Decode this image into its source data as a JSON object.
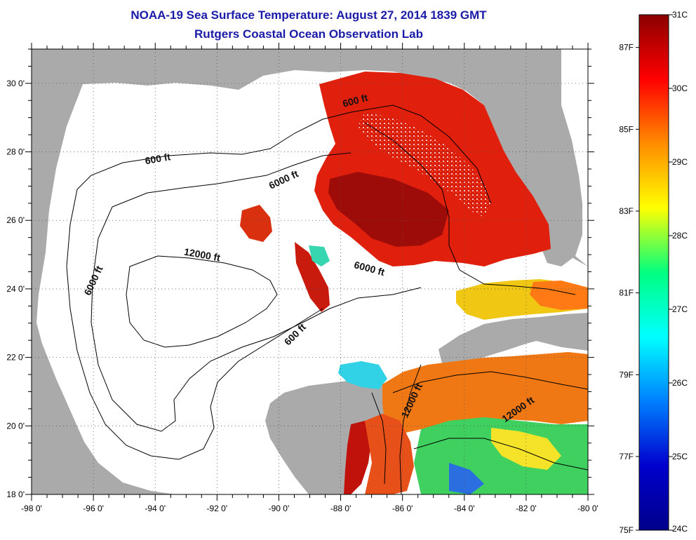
{
  "title": {
    "line1": "NOAA-19 Sea Surface Temperature:  August 27, 2014 1839 GMT",
    "line2": "Rutgers Coastal Ocean Observation Lab"
  },
  "map": {
    "lon_range": [
      -98,
      -80
    ],
    "lat_range": [
      18,
      31
    ],
    "lon_ticks": [
      {
        "value": -98,
        "label": "-98 0'"
      },
      {
        "value": -96,
        "label": "-96 0'"
      },
      {
        "value": -94,
        "label": "-94 0'"
      },
      {
        "value": -92,
        "label": "-92 0'"
      },
      {
        "value": -90,
        "label": "-90 0'"
      },
      {
        "value": -88,
        "label": "-88 0'"
      },
      {
        "value": -86,
        "label": "-86 0'"
      },
      {
        "value": -84,
        "label": "-84 0'"
      },
      {
        "value": -82,
        "label": "-82 0'"
      },
      {
        "value": -80,
        "label": "-80 0'"
      }
    ],
    "lat_ticks": [
      {
        "value": 18,
        "label": "18 0'"
      },
      {
        "value": 20,
        "label": "20 0'"
      },
      {
        "value": 22,
        "label": "22 0'"
      },
      {
        "value": 24,
        "label": "24 0'"
      },
      {
        "value": 26,
        "label": "26 0'"
      },
      {
        "value": 28,
        "label": "28 0'"
      },
      {
        "value": 30,
        "label": "30 0'"
      }
    ],
    "contour_labels": [
      {
        "text": "600 ft",
        "lon": -93.9,
        "lat": 27.7,
        "angle": -10
      },
      {
        "text": "600 ft",
        "lon": -87.5,
        "lat": 29.4,
        "angle": -15
      },
      {
        "text": "6000 ft",
        "lon": -89.8,
        "lat": 27.1,
        "angle": -25
      },
      {
        "text": "6000 ft",
        "lon": -95.9,
        "lat": 24.2,
        "angle": -65
      },
      {
        "text": "6000 ft",
        "lon": -87.1,
        "lat": 24.5,
        "angle": 15
      },
      {
        "text": "12000 ft",
        "lon": -92.5,
        "lat": 24.9,
        "angle": 10
      },
      {
        "text": "600 ft",
        "lon": -89.4,
        "lat": 22.6,
        "angle": -45
      },
      {
        "text": "12000 ft",
        "lon": -85.6,
        "lat": 20.7,
        "angle": -65
      },
      {
        "text": "12000 ft",
        "lon": -82.2,
        "lat": 20.4,
        "angle": -35
      }
    ],
    "colors": {
      "land": "#aaaaaa",
      "ocean_nodata": "#ffffff"
    }
  },
  "colorbar": {
    "celsius": [
      {
        "value": 31,
        "label": "31C"
      },
      {
        "value": 30,
        "label": "30C"
      },
      {
        "value": 29,
        "label": "29C"
      },
      {
        "value": 28,
        "label": "28C"
      },
      {
        "value": 27,
        "label": "27C"
      },
      {
        "value": 26,
        "label": "26C"
      },
      {
        "value": 25,
        "label": "25C"
      },
      {
        "value": 24,
        "label": "24C"
      }
    ],
    "fahrenheit": [
      {
        "value": 87,
        "label": "87F"
      },
      {
        "value": 85,
        "label": "85F"
      },
      {
        "value": 83,
        "label": "83F"
      },
      {
        "value": 81,
        "label": "81F"
      },
      {
        "value": 79,
        "label": "79F"
      },
      {
        "value": 77,
        "label": "77F"
      },
      {
        "value": 75,
        "label": "75F"
      }
    ],
    "stops": [
      "#8b0000",
      "#ff0000",
      "#ff8c00",
      "#ffff00",
      "#00ff7f",
      "#00ffff",
      "#0080ff",
      "#0000cd",
      "#00008b"
    ]
  }
}
